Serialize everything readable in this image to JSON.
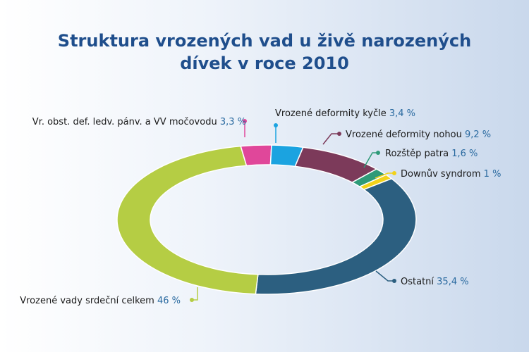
{
  "title": {
    "line1": "Struktura vrozených vad u živě narozených",
    "line2": "dívek v roce 2010"
  },
  "chart_data": {
    "type": "pie",
    "variant": "donut",
    "title": "Struktura vrozených vad u živě narozených dívek v roce 2010",
    "series": [
      {
        "name": "Vr. obst. def. ledv. pánv. a VV močovodu",
        "value": 3.3,
        "value_label": "3,3 %",
        "color": "#e0479a"
      },
      {
        "name": "Vrozené deformity kyčle",
        "value": 3.4,
        "value_label": "3,4 %",
        "color": "#1ba3e0"
      },
      {
        "name": "Vrozené deformity nohou",
        "value": 9.2,
        "value_label": "9,2 %",
        "color": "#7c3a5a"
      },
      {
        "name": "Rozštěp patra",
        "value": 1.6,
        "value_label": "1,6 %",
        "color": "#2e9a78"
      },
      {
        "name": "Downův syndrom",
        "value": 1,
        "value_label": "1 %",
        "color": "#f2d21a"
      },
      {
        "name": "Ostatní",
        "value": 35.4,
        "value_label": "35,4 %",
        "color": "#2c5f80"
      },
      {
        "name": "Vrozené vady srdeční celkem",
        "value": 46,
        "value_label": "46 %",
        "color": "#b5cd44"
      }
    ]
  }
}
